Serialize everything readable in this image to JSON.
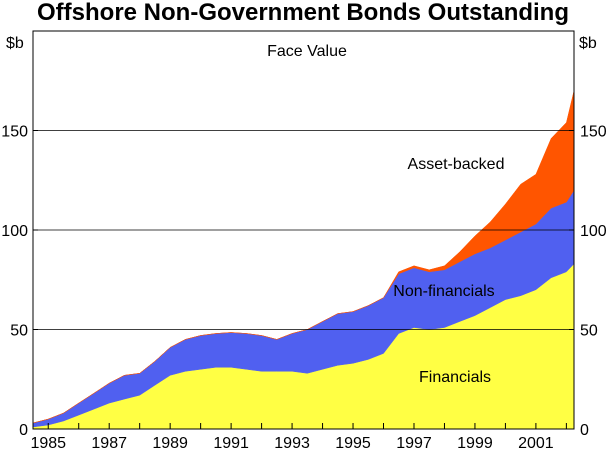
{
  "chart_data": {
    "type": "area",
    "stacked": true,
    "title": "Offshore Non-Government Bonds Outstanding",
    "subtitle": "Face Value",
    "y_unit_left": "$b",
    "y_unit_right": "$b",
    "ylim": [
      0,
      200
    ],
    "yticks": [
      0,
      50,
      100,
      150
    ],
    "xlim": [
      1984.5,
      2002.25
    ],
    "xticks": [
      1985,
      1987,
      1989,
      1991,
      1993,
      1995,
      1997,
      1999,
      2001
    ],
    "xtick_labels": [
      "1985",
      "1987",
      "1989",
      "1991",
      "1993",
      "1995",
      "1997",
      "1999",
      "2001"
    ],
    "grid": "horizontal",
    "legend": "labels inside areas",
    "x": [
      1984.5,
      1985.0,
      1985.5,
      1986.0,
      1986.5,
      1987.0,
      1987.5,
      1988.0,
      1988.5,
      1989.0,
      1989.5,
      1990.0,
      1990.5,
      1991.0,
      1991.5,
      1992.0,
      1992.5,
      1993.0,
      1993.5,
      1994.0,
      1994.5,
      1995.0,
      1995.5,
      1996.0,
      1996.5,
      1997.0,
      1997.5,
      1998.0,
      1998.5,
      1999.0,
      1999.5,
      2000.0,
      2000.5,
      2001.0,
      2001.5,
      2002.0,
      2002.25
    ],
    "series": [
      {
        "name": "Financials",
        "color": "#ffff44",
        "values": [
          1,
          2,
          4,
          7,
          10,
          13,
          15,
          17,
          22,
          27,
          29,
          30,
          31,
          31,
          30,
          29,
          29,
          29,
          28,
          30,
          32,
          33,
          35,
          38,
          48,
          51,
          50,
          51,
          54,
          57,
          61,
          65,
          67,
          70,
          76,
          79,
          83
        ]
      },
      {
        "name": "Non-financials",
        "color": "#5060f0",
        "values": [
          2,
          3,
          4,
          6,
          8,
          10,
          12,
          11,
          12,
          14,
          16,
          17,
          17,
          17.5,
          18,
          18,
          16,
          19,
          22,
          24,
          26,
          26,
          27,
          28,
          30,
          30,
          29,
          29,
          30,
          31,
          30,
          30,
          32,
          33,
          35,
          35,
          37
        ]
      },
      {
        "name": "Asset-backed",
        "color": "#ff5500",
        "values": [
          0,
          0,
          0,
          0,
          0,
          0,
          0,
          0,
          0,
          0,
          0,
          0,
          0,
          0,
          0,
          0,
          0,
          0,
          0,
          0,
          0,
          0,
          0,
          0,
          1,
          1,
          1,
          2,
          5,
          9,
          13,
          18,
          24,
          25,
          35,
          40,
          50
        ]
      }
    ]
  }
}
